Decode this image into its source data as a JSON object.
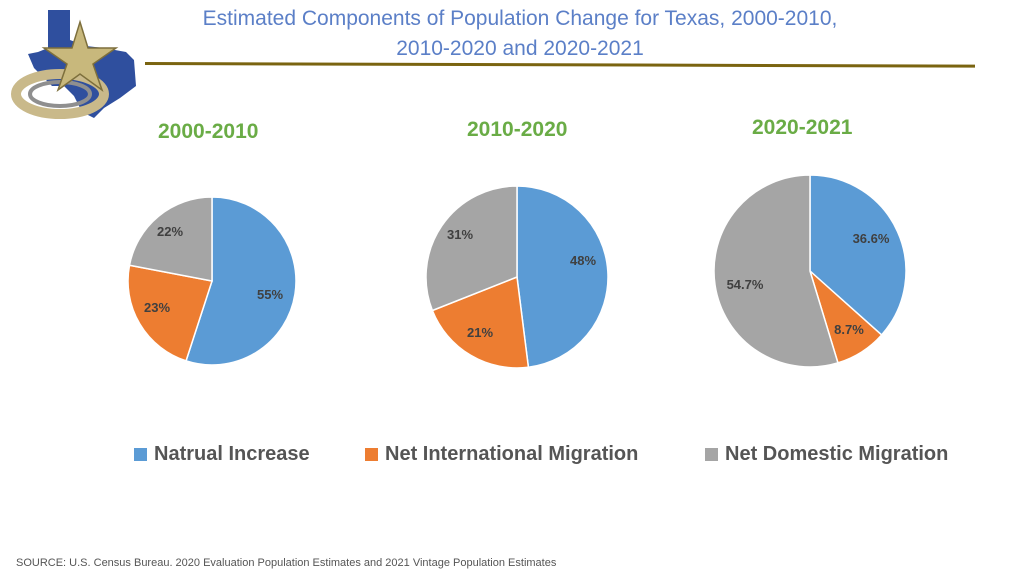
{
  "header": {
    "title_line1": "Estimated Components of Population Change for Texas, 2000-2010,",
    "title_line2": "2010-2020 and 2020-2021"
  },
  "colors": {
    "natural": "#5b9bd5",
    "international": "#ed7d31",
    "domestic": "#a5a5a5",
    "title": "#5b7fc7",
    "year_label": "#6aac46",
    "rule": "#7a6410"
  },
  "logo": {
    "icon": "texas-star-logo-icon"
  },
  "chart_data": [
    {
      "type": "pie",
      "title": "2000-2010",
      "categories": [
        "Natrual Increase",
        "Net International Migration",
        "Net Domestic Migration"
      ],
      "values": [
        55,
        23,
        22
      ],
      "labels": [
        "55%",
        "23%",
        "22%"
      ]
    },
    {
      "type": "pie",
      "title": "2010-2020",
      "categories": [
        "Natrual Increase",
        "Net International Migration",
        "Net Domestic Migration"
      ],
      "values": [
        48,
        21,
        31
      ],
      "labels": [
        "48%",
        "21%",
        "31%"
      ]
    },
    {
      "type": "pie",
      "title": "2020-2021",
      "categories": [
        "Natrual Increase",
        "Net International Migration",
        "Net Domestic Migration"
      ],
      "values": [
        36.6,
        8.7,
        54.7
      ],
      "labels": [
        "36.6%",
        "8.7%",
        "54.7%"
      ]
    }
  ],
  "legend": {
    "items": [
      {
        "label": "Natrual Increase",
        "color_key": "natural"
      },
      {
        "label": "Net International Migration",
        "color_key": "international"
      },
      {
        "label": "Net Domestic Migration",
        "color_key": "domestic"
      }
    ]
  },
  "footer": {
    "source": "SOURCE: U.S. Census Bureau. 2020 Evaluation Population Estimates and 2021 Vintage Population Estimates"
  }
}
